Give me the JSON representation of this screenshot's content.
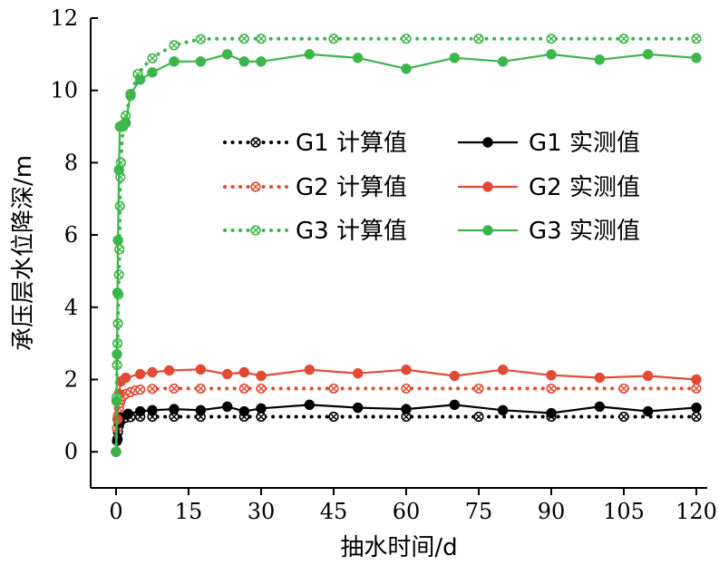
{
  "chart_data": {
    "type": "line",
    "xlabel": "抽水时间/d",
    "ylabel": "承压层水位降深/m",
    "xlim": [
      -3,
      121
    ],
    "ylim": [
      -1,
      12
    ],
    "xticks": [
      0,
      15,
      30,
      45,
      60,
      75,
      90,
      105,
      120
    ],
    "yticks": [
      0,
      2,
      4,
      6,
      8,
      10,
      12
    ],
    "legend_position": "center",
    "series": [
      {
        "name": "G1 计算值",
        "kind": "computed",
        "color": "#000000",
        "x": [
          0,
          0.2,
          0.4,
          0.6,
          0.8,
          1,
          1.5,
          2,
          3,
          5,
          7.5,
          10,
          12,
          17.5,
          20,
          25,
          30,
          35,
          40,
          45,
          50,
          55,
          60,
          65,
          70,
          75,
          80,
          85,
          90,
          95,
          100,
          105,
          110,
          115,
          120
        ],
        "y": [
          0,
          0.3,
          0.55,
          0.72,
          0.82,
          0.88,
          0.92,
          0.94,
          0.96,
          0.97,
          0.97,
          0.97,
          0.97,
          0.97,
          0.97,
          0.97,
          0.97,
          0.97,
          0.97,
          0.97,
          0.97,
          0.97,
          0.97,
          0.97,
          0.97,
          0.97,
          0.97,
          0.97,
          0.97,
          0.97,
          0.97,
          0.97,
          0.97,
          0.97,
          0.97
        ],
        "markers_at": [
          0,
          0.2,
          0.4,
          0.6,
          0.8,
          1,
          1.5,
          2,
          3,
          5,
          7.5,
          12,
          17.5,
          26.5,
          30,
          45,
          60,
          75,
          90,
          105,
          120
        ]
      },
      {
        "name": "G1 实测值",
        "kind": "measured",
        "color": "#000000",
        "x": [
          0,
          0.3,
          0.6,
          1,
          2.5,
          5,
          7.5,
          12,
          17.5,
          23,
          26.5,
          30,
          40,
          50,
          60,
          70,
          80,
          90,
          100,
          110,
          120
        ],
        "y": [
          0,
          0.35,
          0.8,
          0.95,
          1.05,
          1.12,
          1.15,
          1.18,
          1.15,
          1.25,
          1.12,
          1.2,
          1.3,
          1.22,
          1.18,
          1.3,
          1.15,
          1.07,
          1.25,
          1.12,
          1.22
        ]
      },
      {
        "name": "G2 计算值",
        "kind": "computed",
        "color": "#e34a33",
        "x": [
          0,
          0.2,
          0.4,
          0.6,
          0.8,
          1,
          1.5,
          2,
          3,
          4,
          5,
          7.5,
          10,
          12,
          17.5,
          20,
          25,
          30,
          35,
          40,
          45,
          50,
          55,
          60,
          65,
          70,
          75,
          80,
          85,
          90,
          95,
          100,
          105,
          110,
          115,
          120
        ],
        "y": [
          0,
          0.65,
          1.0,
          1.2,
          1.35,
          1.45,
          1.55,
          1.6,
          1.65,
          1.7,
          1.72,
          1.74,
          1.75,
          1.75,
          1.75,
          1.75,
          1.75,
          1.75,
          1.75,
          1.75,
          1.75,
          1.75,
          1.75,
          1.75,
          1.75,
          1.75,
          1.75,
          1.75,
          1.75,
          1.75,
          1.75,
          1.75,
          1.75,
          1.75,
          1.75,
          1.75
        ],
        "markers_at": [
          0,
          0.2,
          0.4,
          0.6,
          0.8,
          1,
          1.5,
          2,
          3,
          4,
          5,
          7.5,
          12,
          17.5,
          26.5,
          30,
          45,
          60,
          75,
          90,
          105,
          120
        ]
      },
      {
        "name": "G2 实测值",
        "kind": "measured",
        "color": "#e34a33",
        "x": [
          0,
          0.3,
          0.6,
          1,
          2,
          5,
          7.5,
          11,
          17.5,
          23,
          26.5,
          30,
          40,
          50,
          60,
          70,
          80,
          90,
          100,
          110,
          120
        ],
        "y": [
          0,
          0.9,
          1.6,
          1.95,
          2.05,
          2.15,
          2.2,
          2.25,
          2.28,
          2.15,
          2.2,
          2.1,
          2.27,
          2.17,
          2.27,
          2.1,
          2.27,
          2.12,
          2.05,
          2.1,
          2.0
        ]
      },
      {
        "name": "G3 计算值",
        "kind": "computed",
        "color": "#3cb54a",
        "x": [
          0,
          0.1,
          0.2,
          0.3,
          0.4,
          0.5,
          0.6,
          0.7,
          0.8,
          0.9,
          1,
          1.2,
          1.5,
          2,
          3,
          4.5,
          6,
          8,
          10,
          12,
          15,
          17.5,
          20,
          25,
          30,
          35,
          40,
          45,
          50,
          55,
          60,
          65,
          70,
          75,
          80,
          85,
          90,
          95,
          100,
          105,
          110,
          115,
          120
        ],
        "y": [
          0,
          1.5,
          2.4,
          3.0,
          3.55,
          4.35,
          4.9,
          5.6,
          6.8,
          7.6,
          8.0,
          8.5,
          9.0,
          9.3,
          9.85,
          10.45,
          10.7,
          10.95,
          11.1,
          11.25,
          11.35,
          11.42,
          11.43,
          11.43,
          11.43,
          11.43,
          11.43,
          11.43,
          11.43,
          11.43,
          11.43,
          11.43,
          11.43,
          11.43,
          11.43,
          11.43,
          11.43,
          11.43,
          11.43,
          11.43,
          11.43,
          11.43,
          11.43
        ],
        "markers_at": [
          0,
          0.1,
          0.2,
          0.3,
          0.4,
          0.5,
          0.6,
          0.7,
          0.8,
          0.9,
          1,
          1.5,
          2,
          3,
          4.5,
          7.5,
          12,
          17.5,
          26.5,
          30,
          45,
          60,
          75,
          90,
          105,
          120
        ]
      },
      {
        "name": "G3 实测值",
        "kind": "measured",
        "color": "#3cb54a",
        "x": [
          0,
          0.1,
          0.2,
          0.3,
          0.4,
          0.6,
          0.8,
          1,
          1.5,
          2,
          3,
          5,
          7.5,
          12,
          17.5,
          23,
          26.5,
          30,
          40,
          50,
          60,
          70,
          80,
          90,
          100,
          110,
          120
        ],
        "y": [
          0,
          1.4,
          2.7,
          4.4,
          5.85,
          7.8,
          9.0,
          9.0,
          9.05,
          9.1,
          9.9,
          10.3,
          10.5,
          10.8,
          10.8,
          11.0,
          10.8,
          10.8,
          11.0,
          10.9,
          10.6,
          10.9,
          10.8,
          11.0,
          10.85,
          11.0,
          10.9
        ]
      }
    ]
  }
}
